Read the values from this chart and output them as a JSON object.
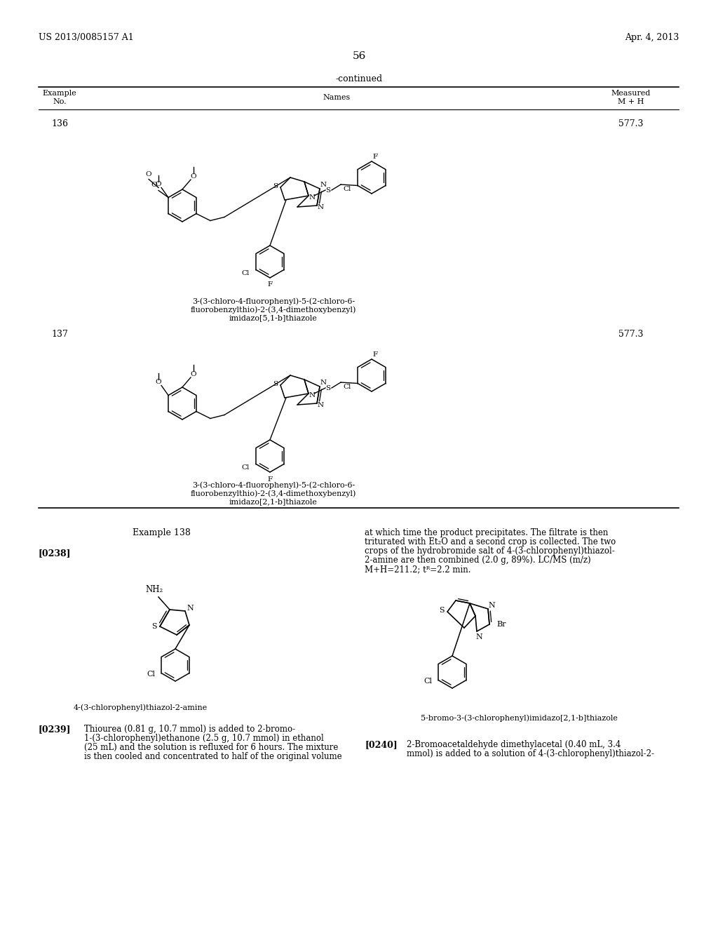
{
  "page_number": "56",
  "patent_number": "US 2013/0085157 A1",
  "patent_date": "Apr. 4, 2013",
  "continued_label": "-continued",
  "col1_header": "Example\nNo.",
  "col2_header": "Names",
  "col3_header": "Measured\nM + H",
  "ex136_num": "136",
  "ex136_val": "577.3",
  "ex136_name_line1": "3-(3-chloro-4-fluorophenyl)-5-(2-chloro-6-",
  "ex136_name_line2": "fluorobenzylthio)-2-(3,4-dimethoxybenzyl)",
  "ex136_name_line3": "imidazo[5,1-b]thiazole",
  "ex137_num": "137",
  "ex137_val": "577.3",
  "ex137_name_line1": "3-(3-chloro-4-fluorophenyl)-5-(2-chloro-6-",
  "ex137_name_line2": "fluorobenzylthio)-2-(3,4-dimethoxybenzyl)",
  "ex137_name_line3": "imidazo[2,1-b]thiazole",
  "ex138_title": "Example 138",
  "p0238": "[0238]",
  "right_text": "at which time the product precipitates. The filtrate is then\ntriturated with Et₂O and a second crop is collected. The two\ncrops of the hydrobromide salt of 4-(3-chlorophenyl)thiazol-\n2-amine are then combined (2.0 g, 89%). LC/MS (m/z)\nM+H=211.2; tᴿ=2.2 min.",
  "left_compound_name": "4-(3-chlorophenyl)thiazol-2-amine",
  "right_compound_name": "5-bromo-3-(3-chlorophenyl)imidazo[2,1-b]thiazole",
  "p0239": "[0239]",
  "p0239_text": "Thiourea (0.81 g, 10.7 mmol) is added to 2-bromo-\n1-(3-chlorophenyl)ethanone (2.5 g, 10.7 mmol) in ethanol\n(25 mL) and the solution is refluxed for 6 hours. The mixture\nis then cooled and concentrated to half of the original volume",
  "p0240": "[0240]",
  "p0240_text": "2-Bromoacetaldehyde dimethylacetal (0.40 mL, 3.4\nmmol) is added to a solution of 4-(3-chlorophenyl)thiazol-2-",
  "bg_color": "#ffffff"
}
